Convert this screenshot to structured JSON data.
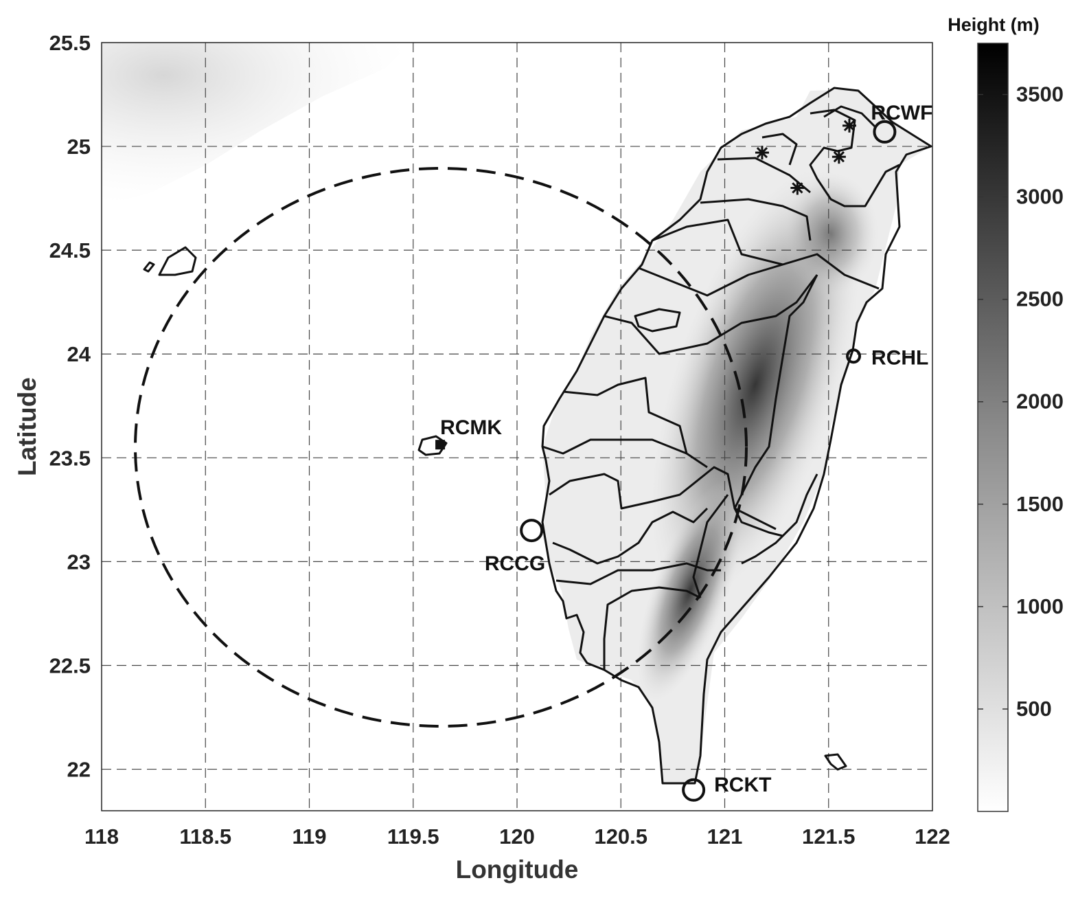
{
  "map": {
    "xlabel": "Longitude",
    "ylabel": "Latitude",
    "xlim": [
      118,
      122
    ],
    "ylim": [
      21.8,
      25.5
    ],
    "x_ticks": [
      "118",
      "118.5",
      "119",
      "119.5",
      "120",
      "120.5",
      "121",
      "121.5",
      "122"
    ],
    "y_ticks": [
      "22",
      "22.5",
      "23",
      "23.5",
      "24",
      "24.5",
      "25",
      "25.5"
    ],
    "grid": true,
    "colorbar": {
      "title": "Height (m)",
      "ticks": [
        "500",
        "1000",
        "1500",
        "2000",
        "2500",
        "3000",
        "3500"
      ],
      "range": [
        0,
        3750
      ],
      "colormap": "gray reversed"
    },
    "radar_range_ring": {
      "style": "dashed",
      "center": {
        "lon": 119.63,
        "lat": 23.56
      }
    },
    "stations": [
      {
        "id": "RCWF",
        "label": "RCWF",
        "lon": 121.77,
        "lat": 25.07,
        "marker": "circle"
      },
      {
        "id": "RCHL",
        "label": "RCHL",
        "lon": 121.62,
        "lat": 23.99,
        "marker": "circle"
      },
      {
        "id": "RCMK",
        "label": "RCMK",
        "lon": 119.63,
        "lat": 23.56,
        "marker": "filled-square"
      },
      {
        "id": "RCCG",
        "label": "RCCG",
        "lon": 120.07,
        "lat": 23.15,
        "marker": "circle"
      },
      {
        "id": "RCKT",
        "label": "RCKT",
        "lon": 120.85,
        "lat": 21.9,
        "marker": "circle"
      }
    ],
    "asterisks": [
      {
        "lon": 121.6,
        "lat": 25.1
      },
      {
        "lon": 121.18,
        "lat": 24.97
      },
      {
        "lon": 121.55,
        "lat": 24.95
      },
      {
        "lon": 121.35,
        "lat": 24.8
      }
    ]
  }
}
